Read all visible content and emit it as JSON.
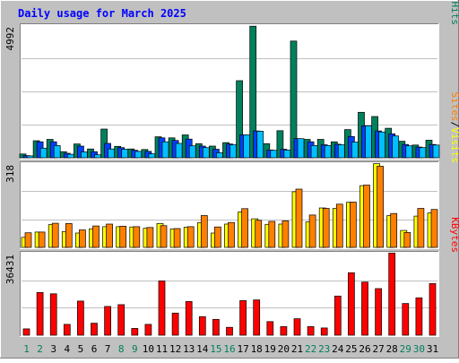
{
  "chart_data": [
    {
      "type": "bar",
      "title": "Daily usage for March 2025",
      "yaxis_top_label": "4992",
      "ylim": [
        0,
        4992
      ],
      "right_labels": [
        "Pages",
        "Files",
        "Hits"
      ],
      "separator": "/",
      "colors": {
        "hits": "#00805c",
        "files": "#0040ff",
        "pages": "#00c0ff"
      },
      "categories": [
        "1",
        "2",
        "3",
        "4",
        "5",
        "6",
        "7",
        "8",
        "9",
        "10",
        "11",
        "12",
        "13",
        "14",
        "15",
        "16",
        "17",
        "18",
        "19",
        "20",
        "21",
        "22",
        "23",
        "24",
        "25",
        "26",
        "27",
        "28",
        "29",
        "30",
        "31"
      ],
      "series": [
        {
          "name": "Hits",
          "values": [
            140,
            640,
            690,
            230,
            520,
            330,
            1080,
            430,
            330,
            310,
            790,
            750,
            860,
            530,
            440,
            570,
            2900,
            4950,
            530,
            1020,
            4390,
            690,
            690,
            600,
            1060,
            1710,
            1550,
            1110,
            620,
            480,
            660
          ]
        },
        {
          "name": "Files",
          "values": [
            80,
            600,
            600,
            170,
            440,
            230,
            540,
            380,
            280,
            240,
            750,
            650,
            700,
            440,
            320,
            520,
            860,
            1010,
            290,
            320,
            720,
            600,
            490,
            510,
            800,
            1200,
            1010,
            900,
            500,
            400,
            500
          ]
        },
        {
          "name": "Pages",
          "values": [
            70,
            360,
            460,
            130,
            220,
            110,
            330,
            320,
            240,
            150,
            600,
            540,
            450,
            380,
            190,
            490,
            860,
            1000,
            280,
            290,
            720,
            460,
            460,
            490,
            590,
            1200,
            970,
            820,
            450,
            380,
            480
          ]
        }
      ]
    },
    {
      "type": "bar",
      "yaxis_top_label": "318",
      "ylim": [
        0,
        318
      ],
      "right_labels": [
        "Sites",
        "Visits"
      ],
      "separator": "/",
      "colors": {
        "visits": "#ffff00",
        "sites": "#ff8000"
      },
      "categories": [
        "1",
        "2",
        "3",
        "4",
        "5",
        "6",
        "7",
        "8",
        "9",
        "10",
        "11",
        "12",
        "13",
        "14",
        "15",
        "16",
        "17",
        "18",
        "19",
        "20",
        "21",
        "22",
        "23",
        "24",
        "25",
        "26",
        "27",
        "28",
        "29",
        "30",
        "31"
      ],
      "series": [
        {
          "name": "Visits",
          "values": [
            38,
            58,
            86,
            60,
            54,
            70,
            78,
            78,
            77,
            72,
            90,
            70,
            76,
            93,
            54,
            88,
            134,
            108,
            87,
            88,
            210,
            96,
            149,
            147,
            170,
            233,
            316,
            120,
            64,
            118,
            130
          ]
        },
        {
          "name": "Sites",
          "values": [
            55,
            58,
            91,
            90,
            66,
            81,
            88,
            80,
            78,
            75,
            82,
            71,
            78,
            120,
            77,
            94,
            146,
            102,
            98,
            100,
            220,
            122,
            147,
            163,
            171,
            235,
            306,
            128,
            56,
            147,
            143
          ]
        }
      ]
    },
    {
      "type": "bar",
      "yaxis_top_label": "36431",
      "ylim": [
        0,
        36431
      ],
      "right_labels": [
        "KBytes"
      ],
      "colors": {
        "kbytes": "#ff0000"
      },
      "categories": [
        "1",
        "2",
        "3",
        "4",
        "5",
        "6",
        "7",
        "8",
        "9",
        "10",
        "11",
        "12",
        "13",
        "14",
        "15",
        "16",
        "17",
        "18",
        "19",
        "20",
        "21",
        "22",
        "23",
        "24",
        "25",
        "26",
        "27",
        "28",
        "29",
        "30",
        "31"
      ],
      "series": [
        {
          "name": "KBytes",
          "values": [
            2800,
            18900,
            18300,
            4800,
            15100,
            5300,
            12700,
            13500,
            3000,
            4800,
            24000,
            9800,
            14900,
            8200,
            7000,
            3500,
            15300,
            15600,
            6000,
            3800,
            7300,
            3800,
            3200,
            17300,
            27600,
            23500,
            20600,
            36300,
            14000,
            16500,
            22800
          ]
        }
      ]
    }
  ],
  "weekend_days": [
    "1",
    "2",
    "8",
    "9",
    "15",
    "16",
    "22",
    "23",
    "29",
    "30"
  ],
  "colors": {
    "background": "#c0c0c0",
    "plot_bg": "#ffffff",
    "title": "#0000ff",
    "weekday_label": "#000000",
    "weekend_label": "#00805c",
    "grid": "#c0c0c0",
    "border_light": "#ffffff",
    "border_dark": "#808080"
  }
}
